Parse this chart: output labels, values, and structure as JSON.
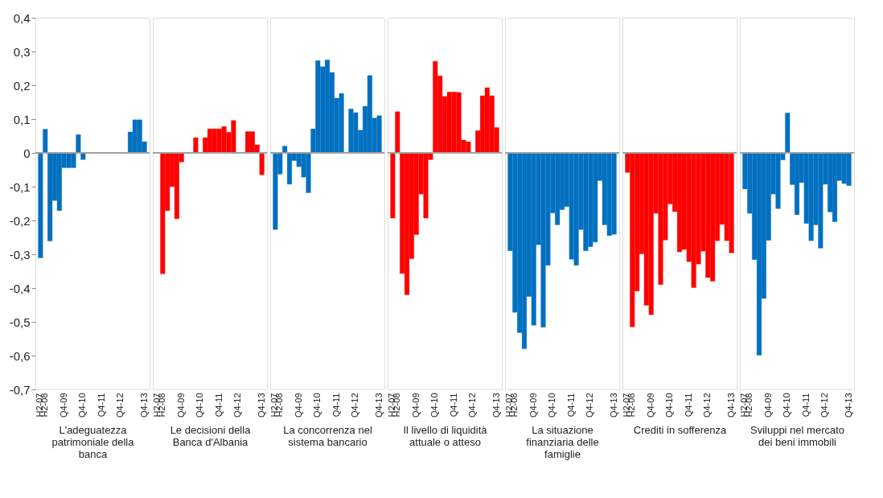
{
  "chart_data": [
    {
      "type": "bar",
      "xlabel": "L'adeguatezza patrimoniale della banca",
      "categories": [
        "H2-07",
        "H2-08",
        null,
        null,
        null,
        "Q4-09",
        null,
        null,
        null,
        "Q4-10",
        null,
        null,
        null,
        "Q4-11",
        null,
        null,
        null,
        "Q4-12",
        null,
        null,
        null,
        null,
        "Q4-13"
      ],
      "series": [
        {
          "color": "#0070c0",
          "values": [
            -0.311,
            0.07,
            -0.261,
            -0.141,
            -0.171,
            -0.044,
            -0.044,
            -0.044,
            0.054,
            -0.02,
            null,
            null,
            null,
            null,
            null,
            null,
            null,
            null,
            null,
            0.062,
            0.098,
            0.098,
            0.033
          ]
        }
      ],
      "ylim": [
        -0.7,
        0.4
      ],
      "yticks": [
        {
          "value": 0.4,
          "label": "0,4"
        },
        {
          "value": 0.3,
          "label": "0,3"
        },
        {
          "value": 0.2,
          "label": "0,2"
        },
        {
          "value": 0.1,
          "label": "0,1"
        },
        0,
        {
          "value": -0.1,
          "label": "-0,1"
        },
        {
          "value": -0.2,
          "label": "-0,2"
        },
        {
          "value": -0.3,
          "label": "-0,3"
        },
        {
          "value": -0.4,
          "label": "-0,4"
        },
        {
          "value": -0.5,
          "label": "-0,5"
        },
        {
          "value": -0.6,
          "label": "-0,6"
        },
        {
          "value": -0.7,
          "label": "-0,7"
        }
      ],
      "ref_lines": [
        {
          "axis": "y",
          "value": 0,
          "color": "#a0a0a0"
        }
      ]
    },
    {
      "type": "bar",
      "xlabel": "Le decisioni della Banca d'Albania",
      "categories": [
        "H2-07",
        "H2-08",
        null,
        null,
        null,
        "Q4-09",
        null,
        null,
        null,
        "Q4-10",
        null,
        null,
        null,
        "Q4-11",
        null,
        null,
        null,
        "Q4-12",
        null,
        null,
        null,
        null,
        "Q4-13"
      ],
      "series": [
        {
          "color": "#ff0000",
          "values": [
            null,
            -0.358,
            -0.171,
            -0.1,
            -0.195,
            -0.027,
            null,
            null,
            0.045,
            null,
            0.045,
            0.071,
            0.071,
            0.071,
            0.078,
            0.061,
            0.096,
            null,
            null,
            0.063,
            0.063,
            0.024,
            -0.065
          ]
        }
      ],
      "ylim": [
        -0.7,
        0.4
      ],
      "ref_lines": [
        {
          "axis": "y",
          "value": 0,
          "color": "#a0a0a0"
        }
      ],
      "tick_labels": "x"
    },
    {
      "type": "bar",
      "xlabel": "La concorrenza nel sistema bancario",
      "categories": [
        "H2-07",
        "H2-08",
        null,
        null,
        null,
        "Q4-09",
        null,
        null,
        null,
        "Q4-10",
        null,
        null,
        null,
        "Q4-11",
        null,
        null,
        null,
        "Q4-12",
        null,
        null,
        null,
        null,
        "Q4-13"
      ],
      "series": [
        {
          "color": "#0070c0",
          "values": [
            -0.227,
            -0.063,
            0.02,
            -0.093,
            -0.023,
            -0.041,
            -0.072,
            -0.118,
            0.071,
            0.273,
            0.255,
            0.275,
            0.238,
            0.162,
            0.176,
            null,
            0.13,
            0.119,
            0.067,
            0.138,
            0.229,
            0.103,
            0.11
          ]
        }
      ],
      "ylim": [
        -0.7,
        0.4
      ],
      "ref_lines": [
        {
          "axis": "y",
          "value": 0,
          "color": "#a0a0a0"
        }
      ],
      "tick_labels": "x"
    },
    {
      "type": "bar",
      "xlabel": "Il livello di liquidità attuale o atteso",
      "categories": [
        "H2-07",
        "H2-08",
        null,
        null,
        null,
        "Q4-09",
        null,
        null,
        null,
        "Q4-10",
        null,
        null,
        null,
        "Q4-11",
        null,
        null,
        null,
        "Q4-12",
        null,
        null,
        null,
        null,
        "Q4-13"
      ],
      "series": [
        {
          "color": "#ff0000",
          "values": [
            -0.193,
            0.122,
            -0.357,
            -0.42,
            -0.313,
            -0.242,
            -0.122,
            -0.193,
            -0.02,
            0.271,
            0.228,
            0.167,
            0.18,
            0.18,
            0.179,
            0.038,
            0.033,
            null,
            0.066,
            0.169,
            0.193,
            0.169,
            0.075
          ]
        }
      ],
      "ylim": [
        -0.7,
        0.4
      ],
      "ref_lines": [
        {
          "axis": "y",
          "value": 0,
          "color": "#a0a0a0"
        }
      ],
      "tick_labels": "x"
    },
    {
      "type": "bar",
      "xlabel": "La situazione finanziaria delle famiglie",
      "categories": [
        "H2-07",
        "H2-08",
        null,
        null,
        null,
        "Q4-09",
        null,
        null,
        null,
        "Q4-10",
        null,
        null,
        null,
        "Q4-11",
        null,
        null,
        null,
        "Q4-12",
        null,
        null,
        null,
        null,
        "Q4-13"
      ],
      "series": [
        {
          "color": "#0070c0",
          "values": [
            -0.29,
            -0.472,
            -0.532,
            -0.58,
            -0.425,
            -0.51,
            -0.272,
            -0.516,
            -0.333,
            -0.178,
            -0.213,
            -0.168,
            -0.159,
            -0.315,
            -0.333,
            -0.227,
            -0.29,
            -0.278,
            -0.264,
            -0.082,
            -0.213,
            -0.245,
            -0.241
          ]
        }
      ],
      "ylim": [
        -0.7,
        0.4
      ],
      "ref_lines": [
        {
          "axis": "y",
          "value": 0,
          "color": "#a0a0a0"
        }
      ],
      "tick_labels": "x"
    },
    {
      "type": "bar",
      "xlabel": "Crediti in sofferenza",
      "categories": [
        "H2-07",
        "H2-08",
        null,
        null,
        null,
        "Q4-09",
        null,
        null,
        null,
        "Q4-10",
        null,
        null,
        null,
        "Q4-11",
        null,
        null,
        null,
        "Q4-12",
        null,
        null,
        null,
        null,
        "Q4-13"
      ],
      "series": [
        {
          "color": "#ff0000",
          "values": [
            -0.058,
            -0.515,
            -0.409,
            -0.299,
            -0.451,
            -0.479,
            -0.179,
            -0.39,
            -0.258,
            -0.151,
            -0.174,
            -0.293,
            -0.286,
            -0.322,
            -0.399,
            -0.329,
            -0.291,
            -0.369,
            -0.38,
            -0.26,
            -0.212,
            -0.26,
            -0.296
          ]
        }
      ],
      "ylim": [
        -0.7,
        0.4
      ],
      "ref_lines": [
        {
          "axis": "y",
          "value": 0,
          "color": "#a0a0a0"
        }
      ],
      "tick_labels": "x"
    },
    {
      "type": "bar",
      "xlabel": "Sviluppi nel mercato dei beni immobili",
      "categories": [
        "H2-07",
        "H2-08",
        null,
        null,
        null,
        "Q4-09",
        null,
        null,
        null,
        "Q4-10",
        null,
        null,
        null,
        "Q4-11",
        null,
        null,
        null,
        "Q4-12",
        null,
        null,
        null,
        null,
        "Q4-13"
      ],
      "series": [
        {
          "color": "#0070c0",
          "values": [
            -0.107,
            -0.179,
            -0.316,
            -0.599,
            -0.431,
            -0.259,
            -0.122,
            -0.165,
            -0.021,
            0.118,
            -0.094,
            -0.183,
            -0.088,
            -0.209,
            -0.26,
            -0.213,
            -0.282,
            -0.093,
            -0.175,
            -0.204,
            -0.082,
            -0.091,
            -0.097
          ]
        }
      ],
      "ylim": [
        -0.7,
        0.4
      ],
      "ref_lines": [
        {
          "axis": "y",
          "value": 0,
          "color": "#a0a0a0"
        }
      ],
      "tick_labels": "x"
    }
  ]
}
